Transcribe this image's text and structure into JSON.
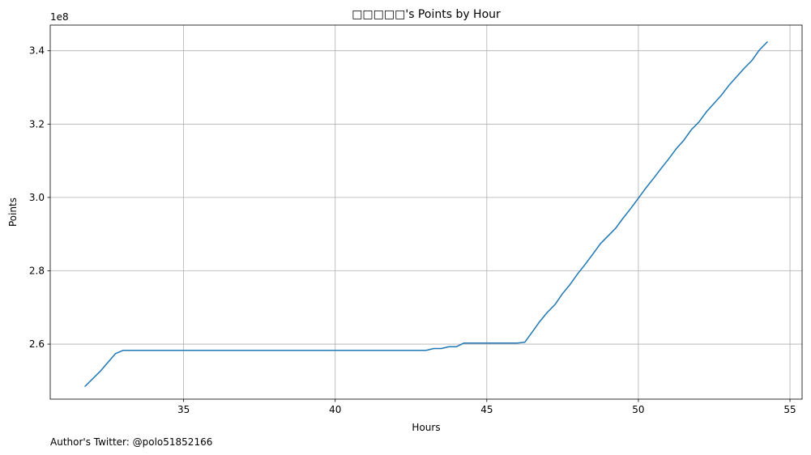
{
  "chart_data": {
    "type": "line",
    "title": "□□□□□'s Points by Hour",
    "xlabel": "Hours",
    "ylabel": "Points",
    "y_offset_label": "1e8",
    "footer": "Author's Twitter: @polo51852166",
    "xlim": [
      30.6,
      55.4
    ],
    "ylim": [
      245000000,
      347000000
    ],
    "xticks": [
      35,
      40,
      45,
      50,
      55
    ],
    "yticks": [
      260000000,
      280000000,
      300000000,
      320000000,
      340000000
    ],
    "xtick_labels": [
      "35",
      "40",
      "45",
      "50",
      "55"
    ],
    "ytick_labels": [
      "2.6",
      "2.8",
      "3.0",
      "3.2",
      "3.4"
    ],
    "grid": true,
    "line_color": "#1f77b4",
    "series": [
      {
        "x": [
          31.75,
          32.25,
          32.5,
          32.75,
          33.0,
          33.25,
          34.0,
          35.0,
          36.0,
          37.0,
          38.0,
          39.0,
          40.0,
          41.0,
          42.0,
          43.0,
          43.25,
          43.5,
          43.75,
          44.0,
          44.25,
          44.5,
          45.0,
          45.5,
          46.0,
          46.25,
          46.5,
          46.75,
          47.0,
          47.25,
          47.5,
          47.75,
          48.0,
          48.25,
          48.5,
          48.75,
          49.0,
          49.25,
          49.5,
          49.75,
          50.0,
          50.25,
          50.5,
          50.75,
          51.0,
          51.25,
          51.5,
          51.75,
          52.0,
          52.25,
          52.5,
          52.75,
          53.0,
          53.25,
          53.5,
          53.75,
          54.0,
          54.25
        ],
        "y": [
          248500000,
          252600000,
          255000000,
          257400000,
          258300000,
          258300000,
          258300000,
          258300000,
          258300000,
          258300000,
          258300000,
          258300000,
          258300000,
          258300000,
          258300000,
          258300000,
          258800000,
          258800000,
          259300000,
          259300000,
          260300000,
          260300000,
          260300000,
          260300000,
          260300000,
          260500000,
          263300000,
          266200000,
          268700000,
          270800000,
          273800000,
          276300000,
          279200000,
          281800000,
          284600000,
          287400000,
          289500000,
          291600000,
          294400000,
          297000000,
          299800000,
          302600000,
          305200000,
          307900000,
          310500000,
          313300000,
          315600000,
          318500000,
          320600000,
          323400000,
          325700000,
          328000000,
          330700000,
          333000000,
          335300000,
          337400000,
          340300000,
          342400000
        ]
      }
    ]
  }
}
